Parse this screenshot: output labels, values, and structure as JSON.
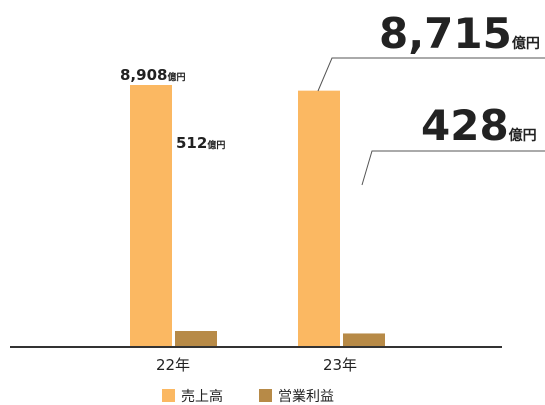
{
  "colors": {
    "sales": "#FBB862",
    "operating_profit": "#B78A47",
    "text": "#222222",
    "axis": "#333333",
    "leader": "#555555"
  },
  "chart_data": {
    "type": "bar",
    "categories": [
      "22年",
      "23年"
    ],
    "series": [
      {
        "name": "売上高",
        "values": [
          8908,
          8715
        ]
      },
      {
        "name": "営業利益",
        "values": [
          512,
          428
        ]
      }
    ],
    "unit": "億円",
    "data_labels": {
      "sales": [
        "8,908",
        "8,715"
      ],
      "operating_profit": [
        "512",
        "428"
      ]
    },
    "legend": [
      "売上高",
      "営業利益"
    ],
    "legend_position": "bottom-center",
    "grid": false,
    "ylim": [
      0,
      10000
    ],
    "title": "",
    "xlabel": "",
    "ylabel": ""
  }
}
